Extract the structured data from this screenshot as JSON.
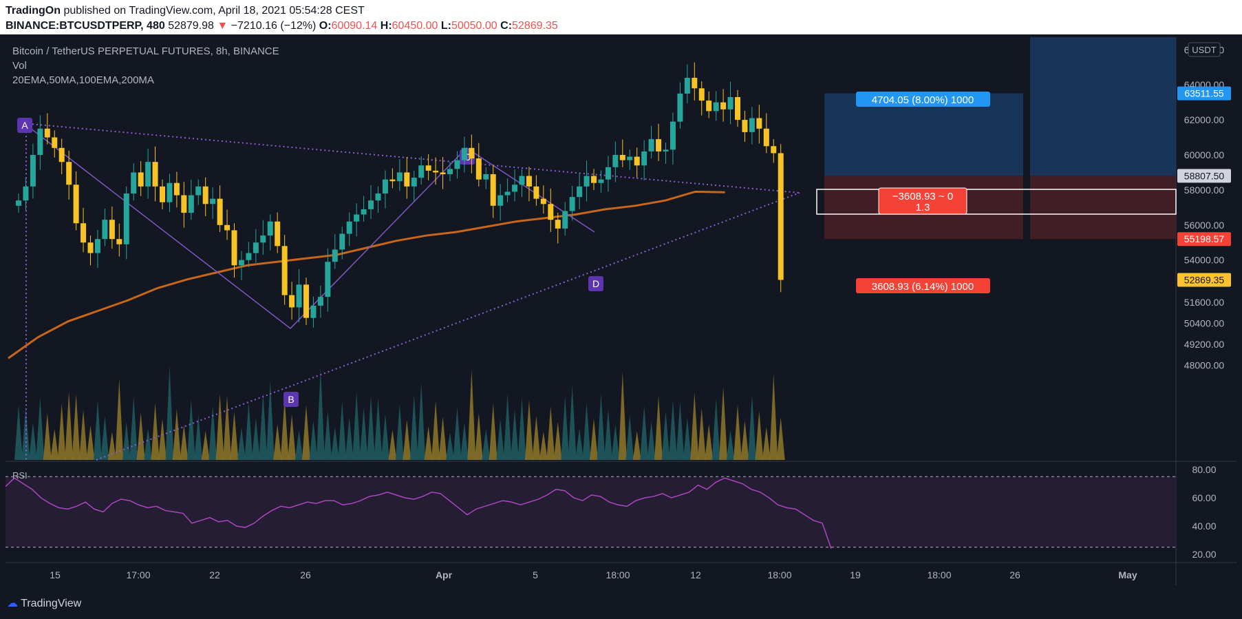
{
  "header": {
    "publisher": "TradingOn",
    "published_text": "published on TradingView.com, April 18, 2021 05:54:28 CEST",
    "symbol": "BINANCE:BTCUSDTPERP, 480",
    "last": "52879.98",
    "change": "−7210.16 (−12%)",
    "open_label": "O:",
    "open": "60090.14",
    "high_label": "H:",
    "high": "60450.00",
    "low_label": "L:",
    "low": "50050.00",
    "close_label": "C:",
    "close": "52869.35"
  },
  "legend": {
    "title": "Bitcoin / TetherUS PERPETUAL FUTURES, 8h, BINANCE",
    "vol": "Vol",
    "mas": "20EMA,50MA,100EMA,200MA",
    "rsi": "RSI"
  },
  "price_axis": {
    "unit": "USDT",
    "ticks": [
      "66000.00",
      "64000.00",
      "62000.00",
      "60000.00",
      "58000.00",
      "56000.00",
      "54000.00",
      "51600.00",
      "50400.00",
      "49200.00",
      "48000.00"
    ],
    "tags": {
      "target": "63511.55",
      "entry": "58807.50",
      "stop": "55198.57",
      "current": "52869.35"
    }
  },
  "rsi_axis": {
    "ticks": [
      "80.00",
      "60.00",
      "40.00",
      "20.00"
    ]
  },
  "time_axis": {
    "ticks": [
      "15",
      "17:00",
      "22",
      "26",
      "Apr",
      "5",
      "18:00",
      "12",
      "18:00",
      "19",
      "18:00",
      "26",
      "May"
    ]
  },
  "position_tool": {
    "target_label": "4704.05 (8.00%) 1000",
    "pnl_label": "−3608.93 ~ 0",
    "ratio_label": "1.3",
    "stop_label": "3608.93 (6.14%) 1000"
  },
  "pattern_labels": [
    "A",
    "B",
    "C",
    "D"
  ],
  "footer": {
    "brand": "TradingView"
  },
  "colors": {
    "up": "#26a69a",
    "down": "#f7c325",
    "ma": "#c8661a",
    "rsi": "#ab47bc",
    "pattern": "#7e57c2",
    "target": "#2196f3",
    "stop": "#f44336",
    "current": "#f9c22e"
  },
  "chart_data": {
    "type": "candlestick",
    "title": "Bitcoin / TetherUS PERPETUAL FUTURES, 8h, BINANCE",
    "ylim": [
      47600,
      66800
    ],
    "x_range": [
      "Mar 13 2021",
      "May 3 2021"
    ],
    "candles_close": [
      57400,
      58200,
      60000,
      61500,
      61000,
      60400,
      59600,
      58300,
      56100,
      55000,
      54400,
      55200,
      56300,
      55200,
      54900,
      57800,
      59000,
      58200,
      59600,
      58200,
      57300,
      58400,
      57700,
      56700,
      57700,
      58200,
      57200,
      57500,
      56000,
      55700,
      53700,
      54000,
      54400,
      55000,
      55400,
      56200,
      54800,
      52000,
      51300,
      52600,
      50700,
      51400,
      51900,
      53900,
      54600,
      55500,
      56200,
      56600,
      56900,
      57400,
      57800,
      58600,
      58500,
      59000,
      58200,
      58700,
      59400,
      59100,
      59000,
      58900,
      59200,
      59700,
      60400,
      59800,
      58600,
      58900,
      57100,
      57700,
      57900,
      58300,
      58800,
      58200,
      57500,
      57200,
      56300,
      55800,
      56800,
      57600,
      58200,
      58800,
      58400,
      58600,
      59300,
      60000,
      59700,
      59900,
      59400,
      60200,
      60900,
      60200,
      60300,
      61900,
      63500,
      64400,
      63800,
      63100,
      62500,
      63000,
      62600,
      63300,
      62000,
      61300,
      62100,
      61500,
      60500,
      60100,
      52870
    ],
    "ma_line": {
      "name": "100EMA",
      "values": [
        48400,
        49600,
        50500,
        51100,
        51700,
        52400,
        52900,
        53300,
        53700,
        53900,
        54100,
        54300,
        54700,
        55100,
        55400,
        55600,
        55900,
        56200,
        56400,
        56600,
        56900,
        57100,
        57400,
        57900,
        57870
      ]
    },
    "pattern": {
      "A": [
        60700,
        61800
      ],
      "B": [
        50100,
        50200
      ],
      "C": [
        59100,
        60400
      ],
      "D": [
        55600,
        55600
      ]
    },
    "position": {
      "entry": 58807.5,
      "target": 63511.55,
      "stop": 55198.57,
      "current": 52869.35
    },
    "rsi": {
      "ylim": [
        20,
        80
      ],
      "bands": [
        75,
        25
      ],
      "values": [
        68,
        74,
        70,
        66,
        60,
        56,
        53,
        52,
        54,
        57,
        52,
        50,
        56,
        59,
        58,
        55,
        53,
        54,
        51,
        50,
        49,
        42,
        44,
        46,
        43,
        44,
        40,
        39,
        42,
        47,
        51,
        54,
        53,
        55,
        57,
        56,
        58,
        58,
        55,
        56,
        58,
        61,
        62,
        64,
        62,
        60,
        59,
        61,
        64,
        63,
        58,
        53,
        48,
        52,
        54,
        56,
        58,
        57,
        55,
        57,
        59,
        62,
        66,
        65,
        60,
        58,
        62,
        61,
        57,
        55,
        54,
        58,
        60,
        61,
        63,
        60,
        62,
        64,
        69,
        66,
        71,
        74,
        72,
        70,
        66,
        64,
        60,
        55,
        53,
        52,
        48,
        44,
        42,
        24
      ]
    }
  }
}
